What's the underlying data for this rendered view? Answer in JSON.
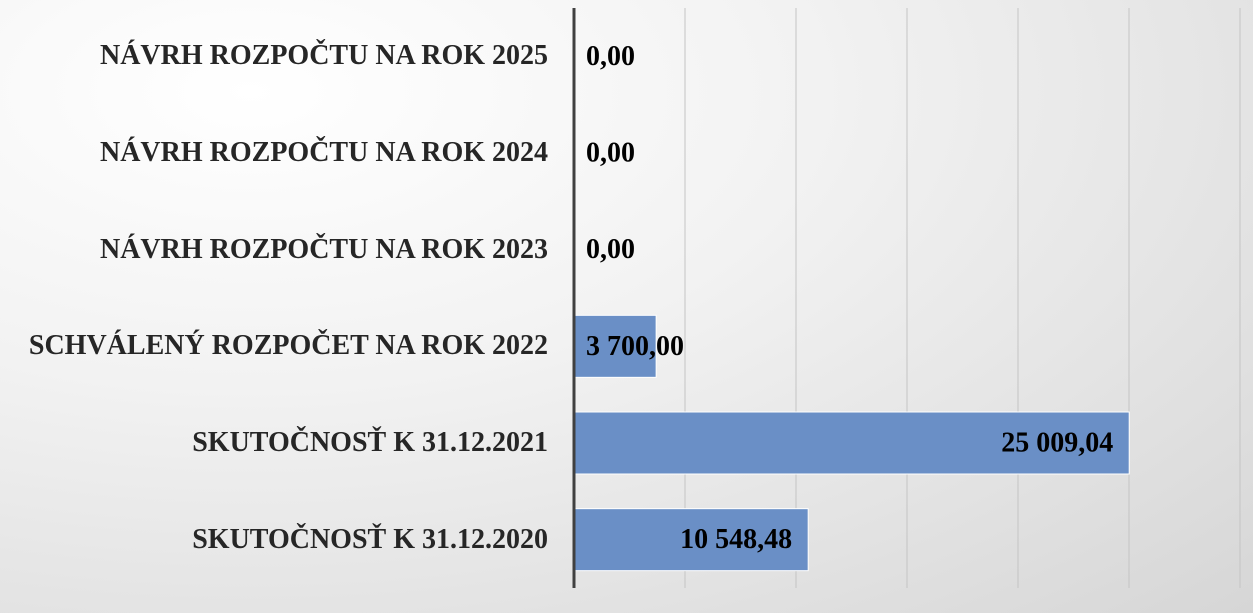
{
  "chart_data": {
    "type": "barh",
    "categories": [
      "SKUTOČNOSŤ K 31.12.2020",
      "SKUTOČNOSŤ K 31.12.2021",
      "SCHVÁLENÝ ROZPOČET NA ROK 2022",
      "NÁVRH ROZPOČTU NA ROK 2023",
      "NÁVRH ROZPOČTU NA ROK 2024",
      "NÁVRH ROZPOČTU NA ROK 2025"
    ],
    "values": [
      10548.48,
      25009.04,
      3700,
      0,
      0,
      0
    ],
    "value_labels": [
      "10 548,48",
      "25 009,04",
      "3 700,00",
      "0,00",
      "0,00",
      "0,00"
    ],
    "color": "#6a8fc6",
    "xlim": [
      0,
      30000
    ],
    "xticks": [
      0,
      5000,
      10000,
      15000,
      20000,
      25000,
      30000
    ],
    "grid": true
  }
}
